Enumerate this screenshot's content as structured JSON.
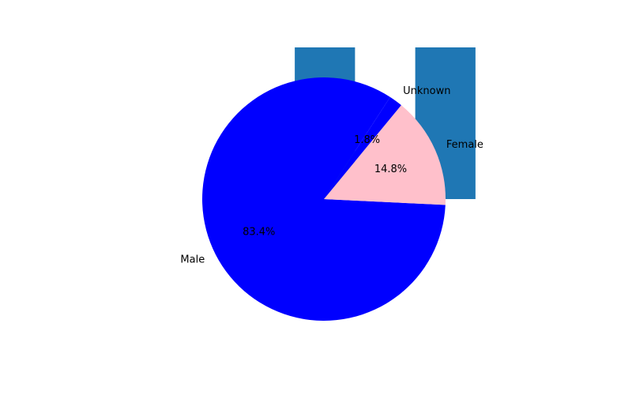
{
  "chart_data": [
    {
      "type": "bar",
      "categories": [
        "",
        ""
      ],
      "values": [
        1,
        1
      ],
      "bar_color": "#1f77b4",
      "axes": "off"
    },
    {
      "type": "pie",
      "labels": [
        "Male",
        "Female",
        "Unknown"
      ],
      "values": [
        83.4,
        14.8,
        1.8
      ],
      "percent_labels": [
        "83.4%",
        "14.8%",
        "1.8%"
      ],
      "colors": [
        "#0000ff",
        "#ffc0cb",
        "#0000ff"
      ],
      "start_angle_deg": 57,
      "legend": "none"
    }
  ]
}
